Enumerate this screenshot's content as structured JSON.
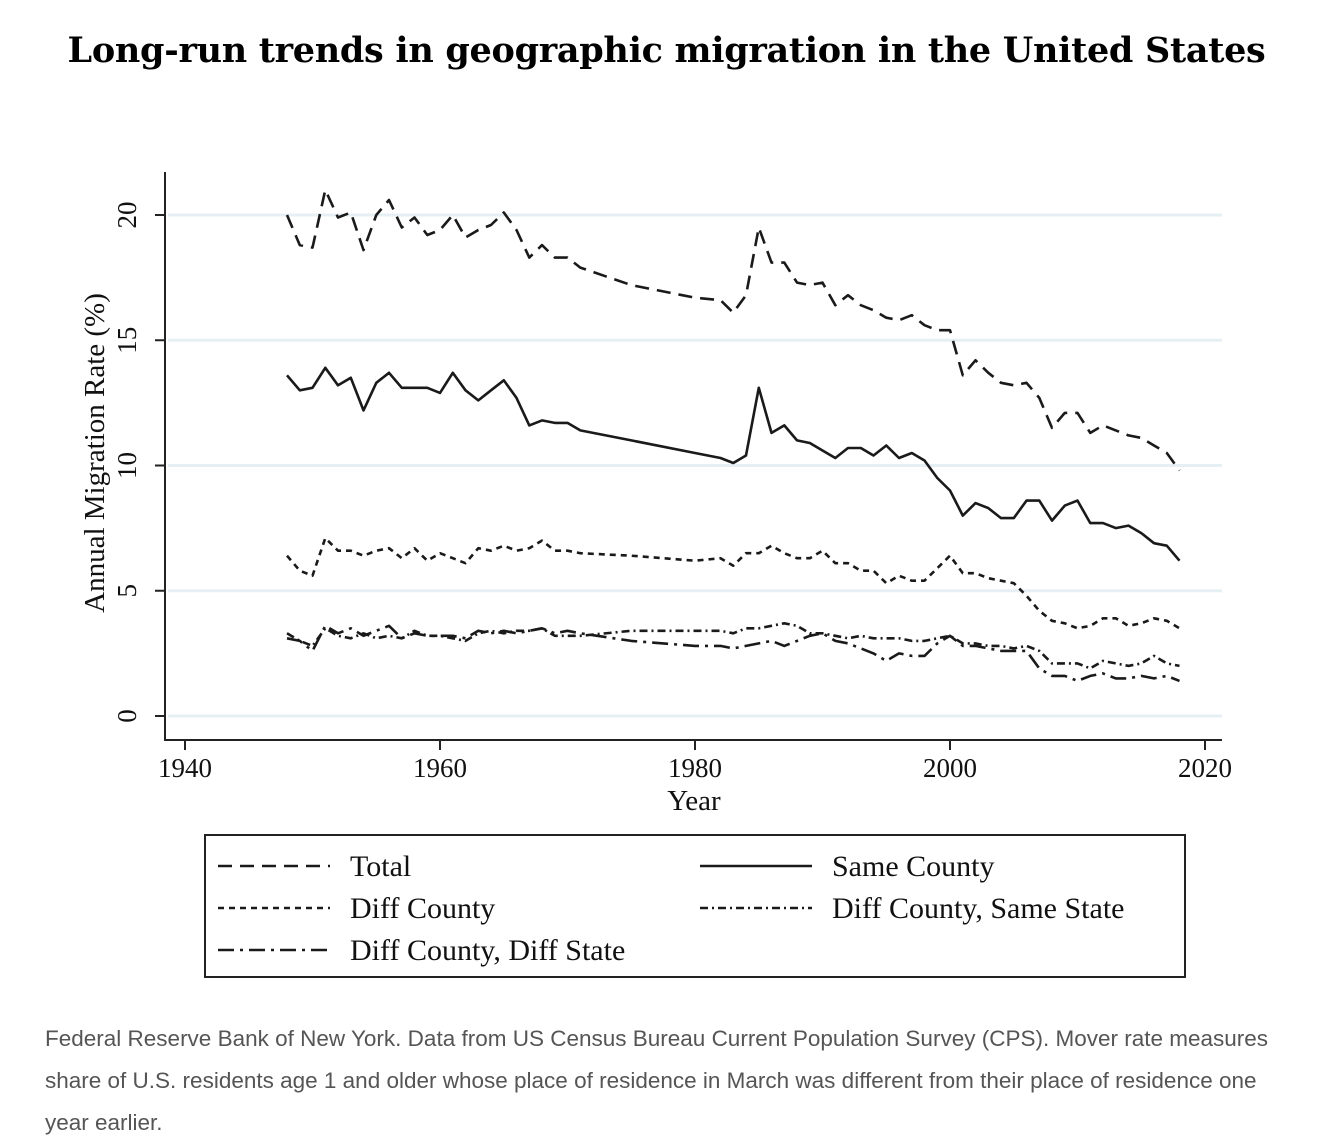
{
  "title": "Long-run trends in geographic migration in the United States",
  "caption": "Federal Reserve Bank of New York. Data from US Census Bureau Current Population Survey (CPS). Mover rate measures share of U.S. residents age 1 and older whose place of residence in March was different from their place of residence one year earlier.",
  "chart_data": {
    "type": "line",
    "title": "Long-run trends in geographic migration in the United States",
    "xlabel": "Year",
    "ylabel": "Annual Migration Rate (%)",
    "xlim": [
      1940,
      2020
    ],
    "ylim": [
      0,
      20
    ],
    "xticks": [
      1940,
      1960,
      1980,
      2000,
      2020
    ],
    "yticks": [
      0,
      5,
      10,
      15,
      20
    ],
    "grid": true,
    "legend_placement": "bottom",
    "x": [
      1948,
      1949,
      1950,
      1951,
      1952,
      1953,
      1954,
      1955,
      1956,
      1957,
      1958,
      1959,
      1960,
      1961,
      1962,
      1963,
      1964,
      1965,
      1966,
      1967,
      1968,
      1969,
      1970,
      1971,
      1975,
      1980,
      1982,
      1983,
      1984,
      1985,
      1986,
      1987,
      1988,
      1989,
      1990,
      1991,
      1992,
      1993,
      1994,
      1995,
      1996,
      1997,
      1998,
      1999,
      2000,
      2001,
      2002,
      2003,
      2004,
      2005,
      2006,
      2007,
      2008,
      2009,
      2010,
      2011,
      2012,
      2013,
      2014,
      2015,
      2016,
      2017,
      2018
    ],
    "series": [
      {
        "name": "Total",
        "dash": "14 8",
        "values": [
          20.0,
          18.8,
          18.7,
          21.0,
          19.9,
          20.1,
          18.6,
          20.0,
          20.6,
          19.5,
          19.9,
          19.2,
          19.4,
          20.0,
          19.1,
          19.4,
          19.6,
          20.1,
          19.4,
          18.3,
          18.8,
          18.3,
          18.3,
          17.9,
          17.2,
          16.7,
          16.6,
          16.1,
          16.8,
          19.5,
          18.1,
          18.1,
          17.3,
          17.2,
          17.3,
          16.4,
          16.8,
          16.4,
          16.2,
          15.9,
          15.8,
          16.0,
          15.6,
          15.4,
          15.4,
          13.6,
          14.2,
          13.7,
          13.3,
          13.2,
          13.3,
          12.7,
          11.5,
          12.1,
          12.1,
          11.3,
          11.6,
          11.4,
          11.2,
          11.1,
          10.8,
          10.5,
          9.8
        ]
      },
      {
        "name": "Same County",
        "dash": "",
        "values": [
          13.6,
          13.0,
          13.1,
          13.9,
          13.2,
          13.5,
          12.2,
          13.3,
          13.7,
          13.1,
          13.1,
          13.1,
          12.9,
          13.7,
          13.0,
          12.6,
          13.0,
          13.4,
          12.7,
          11.6,
          11.8,
          11.7,
          11.7,
          11.4,
          11.0,
          10.5,
          10.3,
          10.1,
          10.4,
          13.1,
          11.3,
          11.6,
          11.0,
          10.9,
          10.6,
          10.3,
          10.7,
          10.7,
          10.4,
          10.8,
          10.3,
          10.5,
          10.2,
          9.5,
          9.0,
          8.0,
          8.5,
          8.3,
          7.9,
          7.9,
          8.6,
          8.6,
          7.8,
          8.4,
          8.6,
          7.7,
          7.7,
          7.5,
          7.6,
          7.3,
          6.9,
          6.8,
          6.2
        ]
      },
      {
        "name": "Diff County",
        "dash": "6 5",
        "values": [
          6.4,
          5.8,
          5.6,
          7.1,
          6.6,
          6.6,
          6.4,
          6.6,
          6.7,
          6.3,
          6.7,
          6.2,
          6.5,
          6.3,
          6.1,
          6.7,
          6.6,
          6.8,
          6.6,
          6.7,
          7.0,
          6.6,
          6.6,
          6.5,
          6.4,
          6.2,
          6.3,
          6.0,
          6.5,
          6.5,
          6.8,
          6.5,
          6.3,
          6.3,
          6.6,
          6.1,
          6.1,
          5.8,
          5.8,
          5.3,
          5.6,
          5.4,
          5.4,
          5.9,
          6.4,
          5.7,
          5.7,
          5.5,
          5.4,
          5.3,
          4.8,
          4.2,
          3.8,
          3.7,
          3.5,
          3.6,
          3.9,
          3.9,
          3.6,
          3.7,
          3.9,
          3.8,
          3.5
        ]
      },
      {
        "name": "Diff County, Same State",
        "dash": "8 4 2 4",
        "values": [
          3.3,
          3.0,
          2.8,
          3.5,
          3.2,
          3.1,
          3.3,
          3.1,
          3.2,
          3.1,
          3.4,
          3.2,
          3.2,
          3.1,
          3.0,
          3.3,
          3.4,
          3.3,
          3.4,
          3.4,
          3.5,
          3.2,
          3.2,
          3.2,
          3.4,
          3.4,
          3.4,
          3.3,
          3.5,
          3.5,
          3.6,
          3.7,
          3.6,
          3.3,
          3.3,
          3.2,
          3.1,
          3.2,
          3.1,
          3.1,
          3.1,
          3.0,
          3.0,
          3.1,
          3.2,
          2.9,
          2.9,
          2.8,
          2.8,
          2.7,
          2.8,
          2.6,
          2.1,
          2.1,
          2.1,
          1.9,
          2.2,
          2.1,
          2.0,
          2.1,
          2.4,
          2.1,
          2.0
        ]
      },
      {
        "name": "Diff County, Diff State",
        "dash": "16 6 3 6",
        "values": [
          3.1,
          3.0,
          2.6,
          3.6,
          3.3,
          3.5,
          3.2,
          3.4,
          3.6,
          3.1,
          3.3,
          3.2,
          3.2,
          3.2,
          3.1,
          3.4,
          3.3,
          3.4,
          3.3,
          3.4,
          3.5,
          3.3,
          3.4,
          3.3,
          3.0,
          2.8,
          2.8,
          2.7,
          2.8,
          2.9,
          3.0,
          2.8,
          3.0,
          3.2,
          3.3,
          3.0,
          2.9,
          2.7,
          2.5,
          2.2,
          2.5,
          2.4,
          2.4,
          2.9,
          3.2,
          2.8,
          2.8,
          2.7,
          2.6,
          2.6,
          2.6,
          1.9,
          1.6,
          1.6,
          1.4,
          1.6,
          1.7,
          1.5,
          1.5,
          1.6,
          1.5,
          1.6,
          1.4
        ]
      }
    ]
  }
}
